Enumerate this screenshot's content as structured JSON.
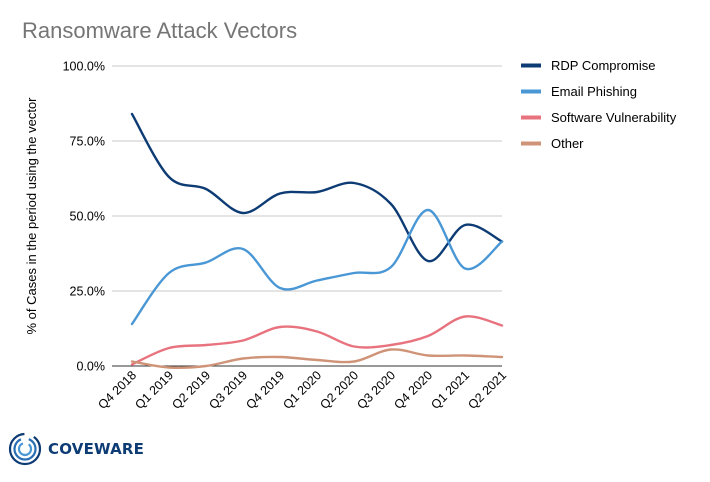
{
  "chart_data": {
    "type": "line",
    "title": "Ransomware Attack Vectors",
    "xlabel": "",
    "ylabel": "% of Cases in the period using the vector",
    "categories": [
      "Q4 2018",
      "Q1 2019",
      "Q2 2019",
      "Q3 2019",
      "Q4 2019",
      "Q1 2020",
      "Q2 2020",
      "Q3 2020",
      "Q4 2020",
      "Q1 2021",
      "Q2 2021"
    ],
    "ylim": [
      0,
      100
    ],
    "yticks": [
      "0.0%",
      "25.0%",
      "50.0%",
      "75.0%",
      "100.0%"
    ],
    "grid": true,
    "legend": "right",
    "series": [
      {
        "name": "RDP Compromise",
        "color": "#0d3b74",
        "values": [
          84,
          63,
          59,
          51,
          57.5,
          58,
          61,
          54,
          35,
          47,
          41.5
        ]
      },
      {
        "name": "Email Phishing",
        "color": "#4a97d6",
        "values": [
          14,
          31,
          34.5,
          39,
          26,
          28.5,
          31,
          33,
          52,
          32.5,
          41.5
        ]
      },
      {
        "name": "Software Vulnerability",
        "color": "#e8737e",
        "values": [
          0.5,
          6,
          7,
          8.5,
          13,
          11.5,
          6.5,
          7,
          10,
          16.5,
          13.5
        ]
      },
      {
        "name": "Other",
        "color": "#cf9378",
        "values": [
          1.5,
          -0.5,
          0,
          2.5,
          3,
          2,
          1.5,
          5.5,
          3.5,
          3.5,
          3
        ]
      }
    ]
  },
  "logo": {
    "name": "COVEWARE"
  }
}
